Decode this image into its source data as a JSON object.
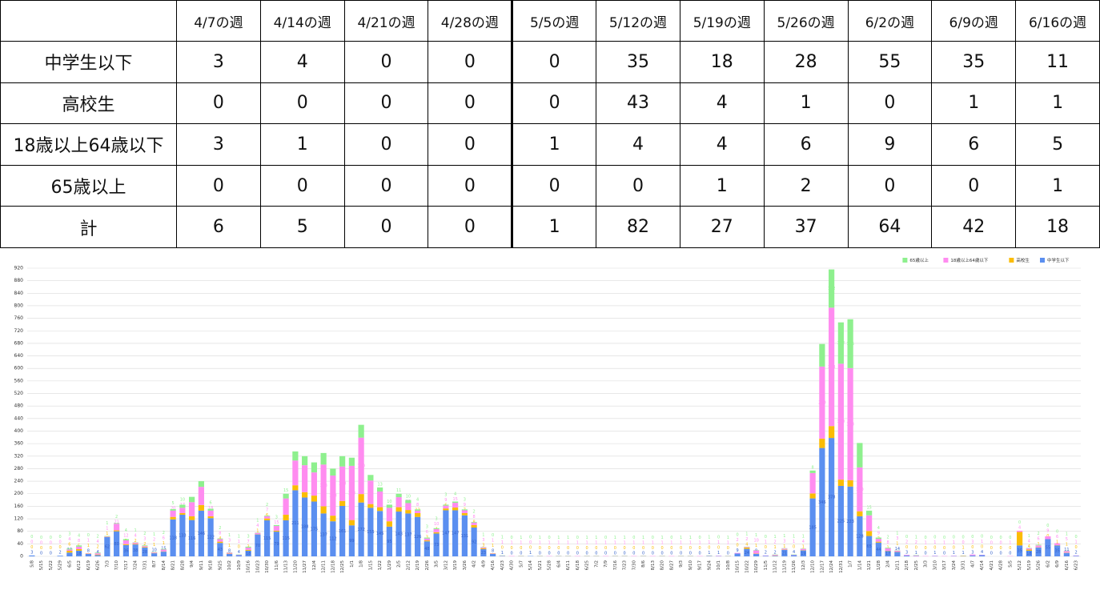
{
  "table": {
    "columns": [
      "4/7の週",
      "4/14の週",
      "4/21の週",
      "4/28の週",
      "5/5の週",
      "5/12の週",
      "5/19の週",
      "5/26の週",
      "6/2の週",
      "6/9の週",
      "6/16の週"
    ],
    "rows": [
      {
        "label": "中学生以下",
        "values": [
          3,
          4,
          0,
          0,
          0,
          35,
          18,
          28,
          55,
          35,
          11
        ]
      },
      {
        "label": "高校生",
        "values": [
          0,
          0,
          0,
          0,
          0,
          43,
          4,
          1,
          0,
          1,
          1
        ]
      },
      {
        "label": "18歳以上64歳以下",
        "values": [
          3,
          1,
          0,
          0,
          1,
          4,
          4,
          6,
          9,
          6,
          5
        ]
      },
      {
        "label": "65歳以上",
        "values": [
          0,
          0,
          0,
          0,
          0,
          0,
          1,
          2,
          0,
          0,
          1
        ]
      },
      {
        "label": "計",
        "values": [
          6,
          5,
          0,
          0,
          1,
          82,
          27,
          37,
          64,
          42,
          18
        ]
      }
    ]
  },
  "chart_data": {
    "type": "bar",
    "stacked": true,
    "grid": true,
    "legend": "top-right",
    "ylim": [
      0,
      920
    ],
    "yticks": [
      0,
      40,
      80,
      120,
      160,
      200,
      240,
      280,
      320,
      360,
      400,
      440,
      480,
      520,
      560,
      600,
      640,
      680,
      720,
      760,
      800,
      840,
      880,
      920
    ],
    "categories": [
      "5/8",
      "5/15",
      "5/22",
      "5/29",
      "6/5",
      "6/12",
      "6/19",
      "6/26",
      "7/3",
      "7/10",
      "7/17",
      "7/24",
      "7/31",
      "8/7",
      "8/14",
      "8/21",
      "8/28",
      "9/4",
      "9/11",
      "9/18",
      "9/25",
      "10/2",
      "10/9",
      "10/16",
      "10/23",
      "10/30",
      "11/6",
      "11/13",
      "11/20",
      "11/27",
      "12/4",
      "12/11",
      "12/18",
      "12/25",
      "1/1",
      "1/8",
      "1/15",
      "1/22",
      "1/29",
      "2/5",
      "2/12",
      "2/19",
      "2/26",
      "3/5",
      "3/12",
      "3/19",
      "3/26",
      "4/2",
      "4/9",
      "4/16",
      "4/23",
      "4/30",
      "5/7",
      "5/14",
      "5/21",
      "5/28",
      "6/4",
      "6/11",
      "6/18",
      "6/25",
      "7/2",
      "7/9",
      "7/16",
      "7/23",
      "7/30",
      "8/6",
      "8/13",
      "8/20",
      "8/27",
      "9/3",
      "9/10",
      "9/17",
      "9/24",
      "10/1",
      "10/8",
      "10/15",
      "10/22",
      "10/29",
      "11/5",
      "11/12",
      "11/19",
      "11/26",
      "12/3",
      "12/10",
      "12/17",
      "12/24",
      "12/31",
      "1/7",
      "1/14",
      "1/21",
      "1/28",
      "2/4",
      "2/11",
      "2/18",
      "2/25",
      "3/3",
      "3/10",
      "3/17",
      "3/24",
      "3/31",
      "4/7",
      "4/14",
      "4/21",
      "4/28",
      "5/5",
      "5/12",
      "5/19",
      "5/26",
      "6/2",
      "6/9",
      "6/16",
      "6/23"
    ],
    "series": [
      {
        "name": "中学生以下",
        "color": "#5b8ff0",
        "values": [
          3,
          0,
          0,
          2,
          12,
          18,
          8,
          4,
          62,
          80,
          36,
          38,
          28,
          10,
          15,
          118,
          133,
          116,
          146,
          122,
          43,
          8,
          4,
          18,
          70,
          115,
          79,
          115,
          211,
          188,
          175,
          137,
          112,
          161,
          99,
          172,
          155,
          145,
          95,
          143,
          137,
          126,
          48,
          73,
          147,
          147,
          131,
          92,
          23,
          8,
          1,
          0,
          0,
          1,
          0,
          0,
          0,
          0,
          0,
          0,
          0,
          0,
          0,
          0,
          0,
          0,
          0,
          0,
          0,
          0,
          0,
          0,
          1,
          1,
          0,
          9,
          24,
          8,
          2,
          2,
          21,
          4,
          19,
          185,
          346,
          378,
          225,
          223,
          128,
          65,
          44,
          17,
          14,
          3,
          1,
          0,
          1,
          0,
          1,
          1,
          3,
          4,
          0,
          0,
          0,
          35,
          18,
          28,
          55,
          35,
          11,
          2
        ]
      },
      {
        "name": "高校生",
        "color": "#fbbc05",
        "values": [
          0,
          0,
          0,
          0,
          6,
          5,
          1,
          2,
          1,
          3,
          3,
          2,
          2,
          1,
          1,
          8,
          5,
          12,
          18,
          6,
          4,
          1,
          0,
          3,
          1,
          6,
          3,
          18,
          16,
          17,
          19,
          23,
          18,
          16,
          17,
          27,
          12,
          12,
          17,
          14,
          11,
          12,
          3,
          4,
          6,
          9,
          7,
          8,
          3,
          1,
          0,
          0,
          0,
          0,
          0,
          0,
          0,
          0,
          0,
          0,
          0,
          0,
          0,
          0,
          0,
          0,
          0,
          0,
          0,
          0,
          0,
          0,
          0,
          0,
          0,
          0,
          4,
          1,
          0,
          1,
          1,
          0,
          1,
          16,
          30,
          38,
          20,
          20,
          16,
          16,
          3,
          1,
          1,
          0,
          0,
          0,
          0,
          0,
          0,
          1,
          0,
          0,
          0,
          0,
          0,
          43,
          4,
          1,
          0,
          1,
          1,
          0
        ]
      },
      {
        "name": "18歳以上64歳以下",
        "color": "#ff8cf0",
        "values": [
          0,
          0,
          0,
          0,
          4,
          8,
          1,
          4,
          1,
          21,
          12,
          4,
          3,
          2,
          6,
          20,
          17,
          45,
          58,
          18,
          8,
          3,
          1,
          7,
          4,
          7,
          15,
          52,
          79,
          86,
          74,
          133,
          128,
          110,
          173,
          180,
          75,
          50,
          43,
          32,
          22,
          8,
          6,
          10,
          9,
          15,
          9,
          8,
          3,
          1,
          1,
          1,
          1,
          0,
          1,
          1,
          1,
          1,
          1,
          1,
          1,
          1,
          1,
          1,
          1,
          1,
          1,
          1,
          1,
          1,
          1,
          1,
          1,
          1,
          1,
          2,
          2,
          10,
          1,
          2,
          3,
          1,
          4,
          65,
          230,
          378,
          370,
          358,
          140,
          50,
          9,
          8,
          3,
          2,
          2,
          1,
          1,
          1,
          1,
          0,
          3,
          1,
          0,
          0,
          1,
          4,
          4,
          6,
          9,
          6,
          5,
          1
        ]
      },
      {
        "name": "65歳以上",
        "color": "#8ef08e",
        "values": [
          0,
          0,
          0,
          0,
          3,
          4,
          0,
          2,
          1,
          2,
          4,
          1,
          2,
          1,
          2,
          5,
          10,
          17,
          18,
          6,
          2,
          1,
          1,
          3,
          1,
          2,
          3,
          15,
          29,
          29,
          32,
          37,
          22,
          33,
          26,
          41,
          18,
          13,
          10,
          11,
          10,
          4,
          3,
          3,
          3,
          4,
          3,
          2,
          1,
          0,
          1,
          0,
          1,
          0,
          1,
          0,
          1,
          1,
          0,
          1,
          1,
          0,
          1,
          1,
          0,
          1,
          0,
          1,
          0,
          1,
          1,
          0,
          1,
          0,
          1,
          0,
          1,
          1,
          0,
          1,
          1,
          1,
          1,
          8,
          72,
          122,
          132,
          156,
          78,
          15,
          4,
          2,
          1,
          0,
          1,
          0,
          0,
          0,
          0,
          0,
          0,
          0,
          0,
          0,
          0,
          0,
          1,
          2,
          0,
          0,
          1,
          0
        ]
      }
    ]
  }
}
